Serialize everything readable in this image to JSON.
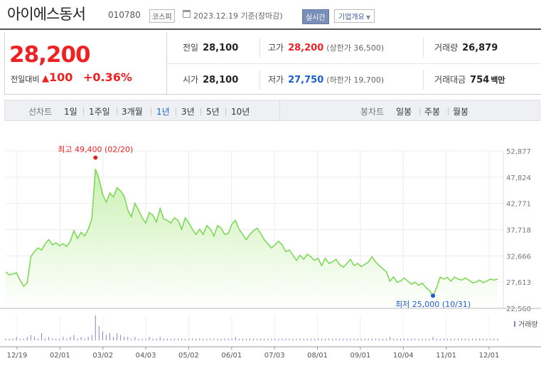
{
  "header": {
    "stock_name": "아이에스동서",
    "stock_code": "010780",
    "market": "코스피",
    "date_text": "2023.12.19 기준(장마감)",
    "realtime_label": "실시간",
    "company_overview_label": "기업개요"
  },
  "price": {
    "current": "28,200",
    "change_label": "전일대비",
    "change_value": "100",
    "change_direction": "up",
    "change_percent": "+0.36%"
  },
  "quote": {
    "prev_close": {
      "label": "전일",
      "value": "28,100"
    },
    "high": {
      "label": "고가",
      "value": "28,200",
      "sub": "(상한가 36,500)"
    },
    "volume": {
      "label": "거래량",
      "value": "26,879"
    },
    "open": {
      "label": "시가",
      "value": "28,100"
    },
    "low": {
      "label": "저가",
      "value": "27,750",
      "sub": "(하한가 19,700)"
    },
    "trade_amount": {
      "label": "거래대금",
      "value": "754",
      "unit": "백만"
    }
  },
  "toolbar": {
    "line_chart_label": "선차트",
    "periods": [
      "1일",
      "1주일",
      "3개월",
      "1년",
      "3년",
      "5년",
      "10년"
    ],
    "active_period": "1년",
    "candle_chart_label": "봉차트",
    "candle_periods": [
      "일봉",
      "주봉",
      "월봉"
    ]
  },
  "chart_data": {
    "type": "area",
    "x_tick_labels": [
      "12/19",
      "02/01",
      "03/02",
      "04/03",
      "05/02",
      "06/01",
      "07/03",
      "08/01",
      "09/01",
      "10/04",
      "11/01",
      "12/01"
    ],
    "y_tick_labels": [
      "52,877",
      "47,824",
      "42,771",
      "37,718",
      "32,666",
      "27,613",
      "22,560"
    ],
    "ylim": [
      22560,
      52877
    ],
    "series": [
      {
        "values": [
          29600,
          29000,
          29200,
          29400,
          28000,
          26800,
          27500,
          32500,
          33500,
          34200,
          33800,
          35000,
          35800,
          34800,
          35200,
          34600,
          35000,
          34500,
          35500,
          37500,
          36000,
          37200,
          36500,
          37800,
          39800,
          49400,
          47500,
          44500,
          43000,
          44800,
          44000,
          45800,
          45200,
          44200,
          41500,
          40200,
          42800,
          41500,
          40000,
          39000,
          41000,
          40500,
          39200,
          41800,
          39800,
          39500,
          39000,
          40000,
          39500,
          37800,
          40000,
          39000,
          37800,
          36800,
          37800,
          36800,
          38500,
          37800,
          36500,
          38500,
          38000,
          36800,
          37000,
          38800,
          39500,
          37800,
          36800,
          35800,
          36800,
          37500,
          38000,
          37000,
          35800,
          35000,
          34200,
          34800,
          35500,
          34800,
          33500,
          33800,
          32800,
          31800,
          32800,
          32000,
          33000,
          32500,
          31800,
          32200,
          30800,
          32200,
          31200,
          31500,
          32000,
          31000,
          30500,
          31200,
          32000,
          30800,
          31200,
          30600,
          31000,
          31500,
          32500,
          31500,
          30800,
          30200,
          29600,
          27800,
          28600,
          27600,
          27800,
          28400,
          27800,
          27200,
          27600,
          27000,
          27400,
          26600,
          26000,
          25000,
          26500,
          28600,
          28200,
          28500,
          27800,
          28600,
          28200,
          28000,
          28400,
          28000,
          27500,
          27600,
          28000,
          27500,
          27800,
          28200,
          28000,
          28200
        ]
      }
    ],
    "volume_values": [
      1,
      1,
      1,
      2,
      1,
      1,
      2,
      3,
      2,
      1,
      4,
      1,
      2,
      1,
      1,
      1,
      2,
      1,
      2,
      3,
      1,
      2,
      1,
      2,
      3,
      14,
      8,
      5,
      3,
      4,
      2,
      4,
      3,
      2,
      2,
      1,
      2,
      1,
      1,
      1,
      2,
      1,
      1,
      2,
      1,
      1,
      1,
      1,
      1,
      1,
      1,
      1,
      1,
      1,
      1,
      1,
      1,
      1,
      1,
      1,
      1,
      1,
      1,
      1,
      2,
      1,
      1,
      1,
      1,
      1,
      1,
      1,
      1,
      1,
      1,
      1,
      1,
      1,
      1,
      1,
      1,
      1,
      1,
      1,
      1,
      1,
      1,
      1,
      1,
      1,
      1,
      1,
      1,
      1,
      1,
      1,
      1,
      1,
      1,
      1,
      1,
      1,
      1,
      1,
      1,
      1,
      1,
      2,
      1,
      1,
      1,
      1,
      1,
      1,
      1,
      1,
      1,
      1,
      1,
      2,
      1,
      1,
      1,
      1,
      1,
      1,
      1,
      1,
      1,
      1,
      1,
      1,
      1,
      1,
      1,
      1,
      1,
      1
    ],
    "high_annotation": "최고 49,400 (02/20)",
    "low_annotation": "최저 25,000 (10/31)",
    "volume_legend": "거래량",
    "line_color": "#7ed957",
    "fill_color": "#c8f0b0",
    "high_color": "#e22222",
    "low_color": "#1a5fd0",
    "grid": true
  }
}
